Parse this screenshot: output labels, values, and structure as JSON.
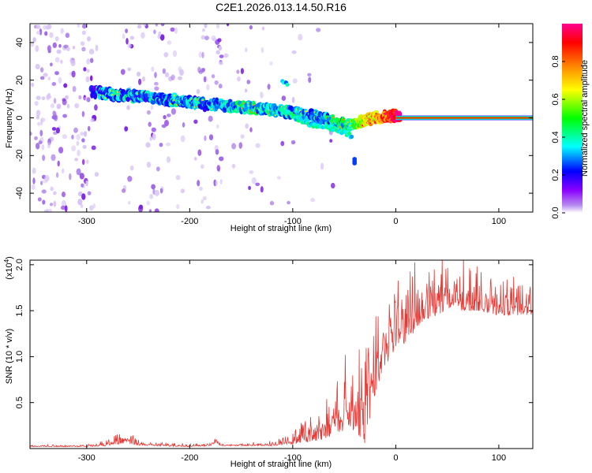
{
  "figure": {
    "title": "C2E1.2026.013.14.50.R16"
  },
  "colors": {
    "background": "#ffffff",
    "signal_line": "#e53935",
    "noise_purple": "#7a1fe0",
    "noise_light": "#c9a8f2",
    "axis": "#000000"
  },
  "chart_data": [
    {
      "type": "heatmap",
      "id": "spectrogram",
      "title": "C2E1.2026.013.14.50.R16",
      "xlabel": "Height of straight line (km)",
      "ylabel": "Frequency (Hz)",
      "xlim": [
        -355,
        133
      ],
      "ylim": [
        -50,
        50
      ],
      "xticks": [
        -300,
        -200,
        -100,
        0,
        100
      ],
      "xtick_labels": [
        "-300",
        "-200",
        "-100",
        "0",
        "100"
      ],
      "yticks": [
        -40,
        -20,
        0,
        20,
        40
      ],
      "ytick_labels": [
        "-40",
        "-20",
        "0",
        "20",
        "40"
      ],
      "colorbar": {
        "label": "Normalized spectral amplitude",
        "range": [
          0,
          1
        ],
        "ticks": [
          0.0,
          0.2,
          0.4,
          0.6,
          0.8
        ],
        "tick_labels": [
          "0.0",
          "0.2",
          "0.4",
          "0.6",
          "0.8"
        ],
        "colormap": [
          "#ffffff",
          "#8b00ff",
          "#0000ff",
          "#00ffff",
          "#00ff00",
          "#ffff00",
          "#ff8000",
          "#ff0000",
          "#ff0090"
        ]
      },
      "ridge": {
        "x": [
          -295,
          -270,
          -240,
          -210,
          -180,
          -150,
          -120,
          -100,
          -80,
          -60,
          -45,
          -35,
          -20,
          -10,
          0,
          20,
          133
        ],
        "y": [
          14,
          12,
          11,
          9,
          7,
          6,
          4,
          3,
          1,
          -2,
          -4,
          -2,
          0,
          1,
          1,
          0,
          0
        ],
        "amplitude": [
          0.25,
          0.3,
          0.28,
          0.3,
          0.3,
          0.35,
          0.35,
          0.35,
          0.3,
          0.35,
          0.4,
          0.6,
          0.7,
          0.8,
          0.95,
          0.95,
          0.95
        ]
      },
      "branches": [
        {
          "x": [
            -110,
            -100,
            -90,
            -80,
            -70,
            -60,
            -50,
            -42
          ],
          "y": [
            4,
            1,
            -2,
            -4,
            -5,
            -6,
            -8,
            -10
          ],
          "amplitude": 0.3
        },
        {
          "x": [
            -110,
            -105
          ],
          "y": [
            19,
            18
          ],
          "amplitude": 0.25
        },
        {
          "x": [
            -40
          ],
          "y": [
            -23
          ],
          "amplitude": 0.25
        }
      ]
    },
    {
      "type": "line",
      "id": "snr",
      "xlabel": "Height of straight line (km)",
      "ylabel": "SNR (10 * v/v)",
      "yscale_label": "(x10",
      "yscale_exponent": "4",
      "yscale_suffix": ")",
      "xlim": [
        -355,
        133
      ],
      "ylim": [
        0,
        2.05
      ],
      "xticks": [
        -300,
        -200,
        -100,
        0,
        100
      ],
      "xtick_labels": [
        "-300",
        "-200",
        "-100",
        "0",
        "100"
      ],
      "yticks": [
        0.5,
        1.0,
        1.5,
        2.0
      ],
      "ytick_labels": [
        "0.5",
        "1.0",
        "1.5",
        "2.0"
      ],
      "series": [
        {
          "name": "SNR",
          "envelope_x": [
            -355,
            -300,
            -280,
            -265,
            -255,
            -240,
            -200,
            -180,
            -175,
            -170,
            -150,
            -120,
            -110,
            -100,
            -90,
            -80,
            -70,
            -60,
            -50,
            -40,
            -30,
            -20,
            -10,
            0,
            10,
            20,
            30,
            40,
            50,
            60,
            80,
            100,
            120,
            133
          ],
          "envelope_low": [
            0.02,
            0.02,
            0.03,
            0.05,
            0.04,
            0.03,
            0.02,
            0.03,
            0.06,
            0.03,
            0.03,
            0.03,
            0.04,
            0.05,
            0.06,
            0.08,
            0.1,
            0.15,
            0.2,
            0.2,
            0.05,
            0.6,
            0.9,
            1.1,
            1.15,
            1.3,
            1.4,
            1.45,
            1.5,
            1.5,
            1.5,
            1.45,
            1.45,
            1.45
          ],
          "envelope_high": [
            0.04,
            0.04,
            0.08,
            0.17,
            0.12,
            0.06,
            0.05,
            0.05,
            0.14,
            0.05,
            0.05,
            0.07,
            0.12,
            0.18,
            0.26,
            0.35,
            0.5,
            0.6,
            0.85,
            0.95,
            1.05,
            1.3,
            1.55,
            1.7,
            1.85,
            1.9,
            1.95,
            2.0,
            1.95,
            1.9,
            1.85,
            1.8,
            1.78,
            1.75
          ]
        }
      ]
    }
  ]
}
